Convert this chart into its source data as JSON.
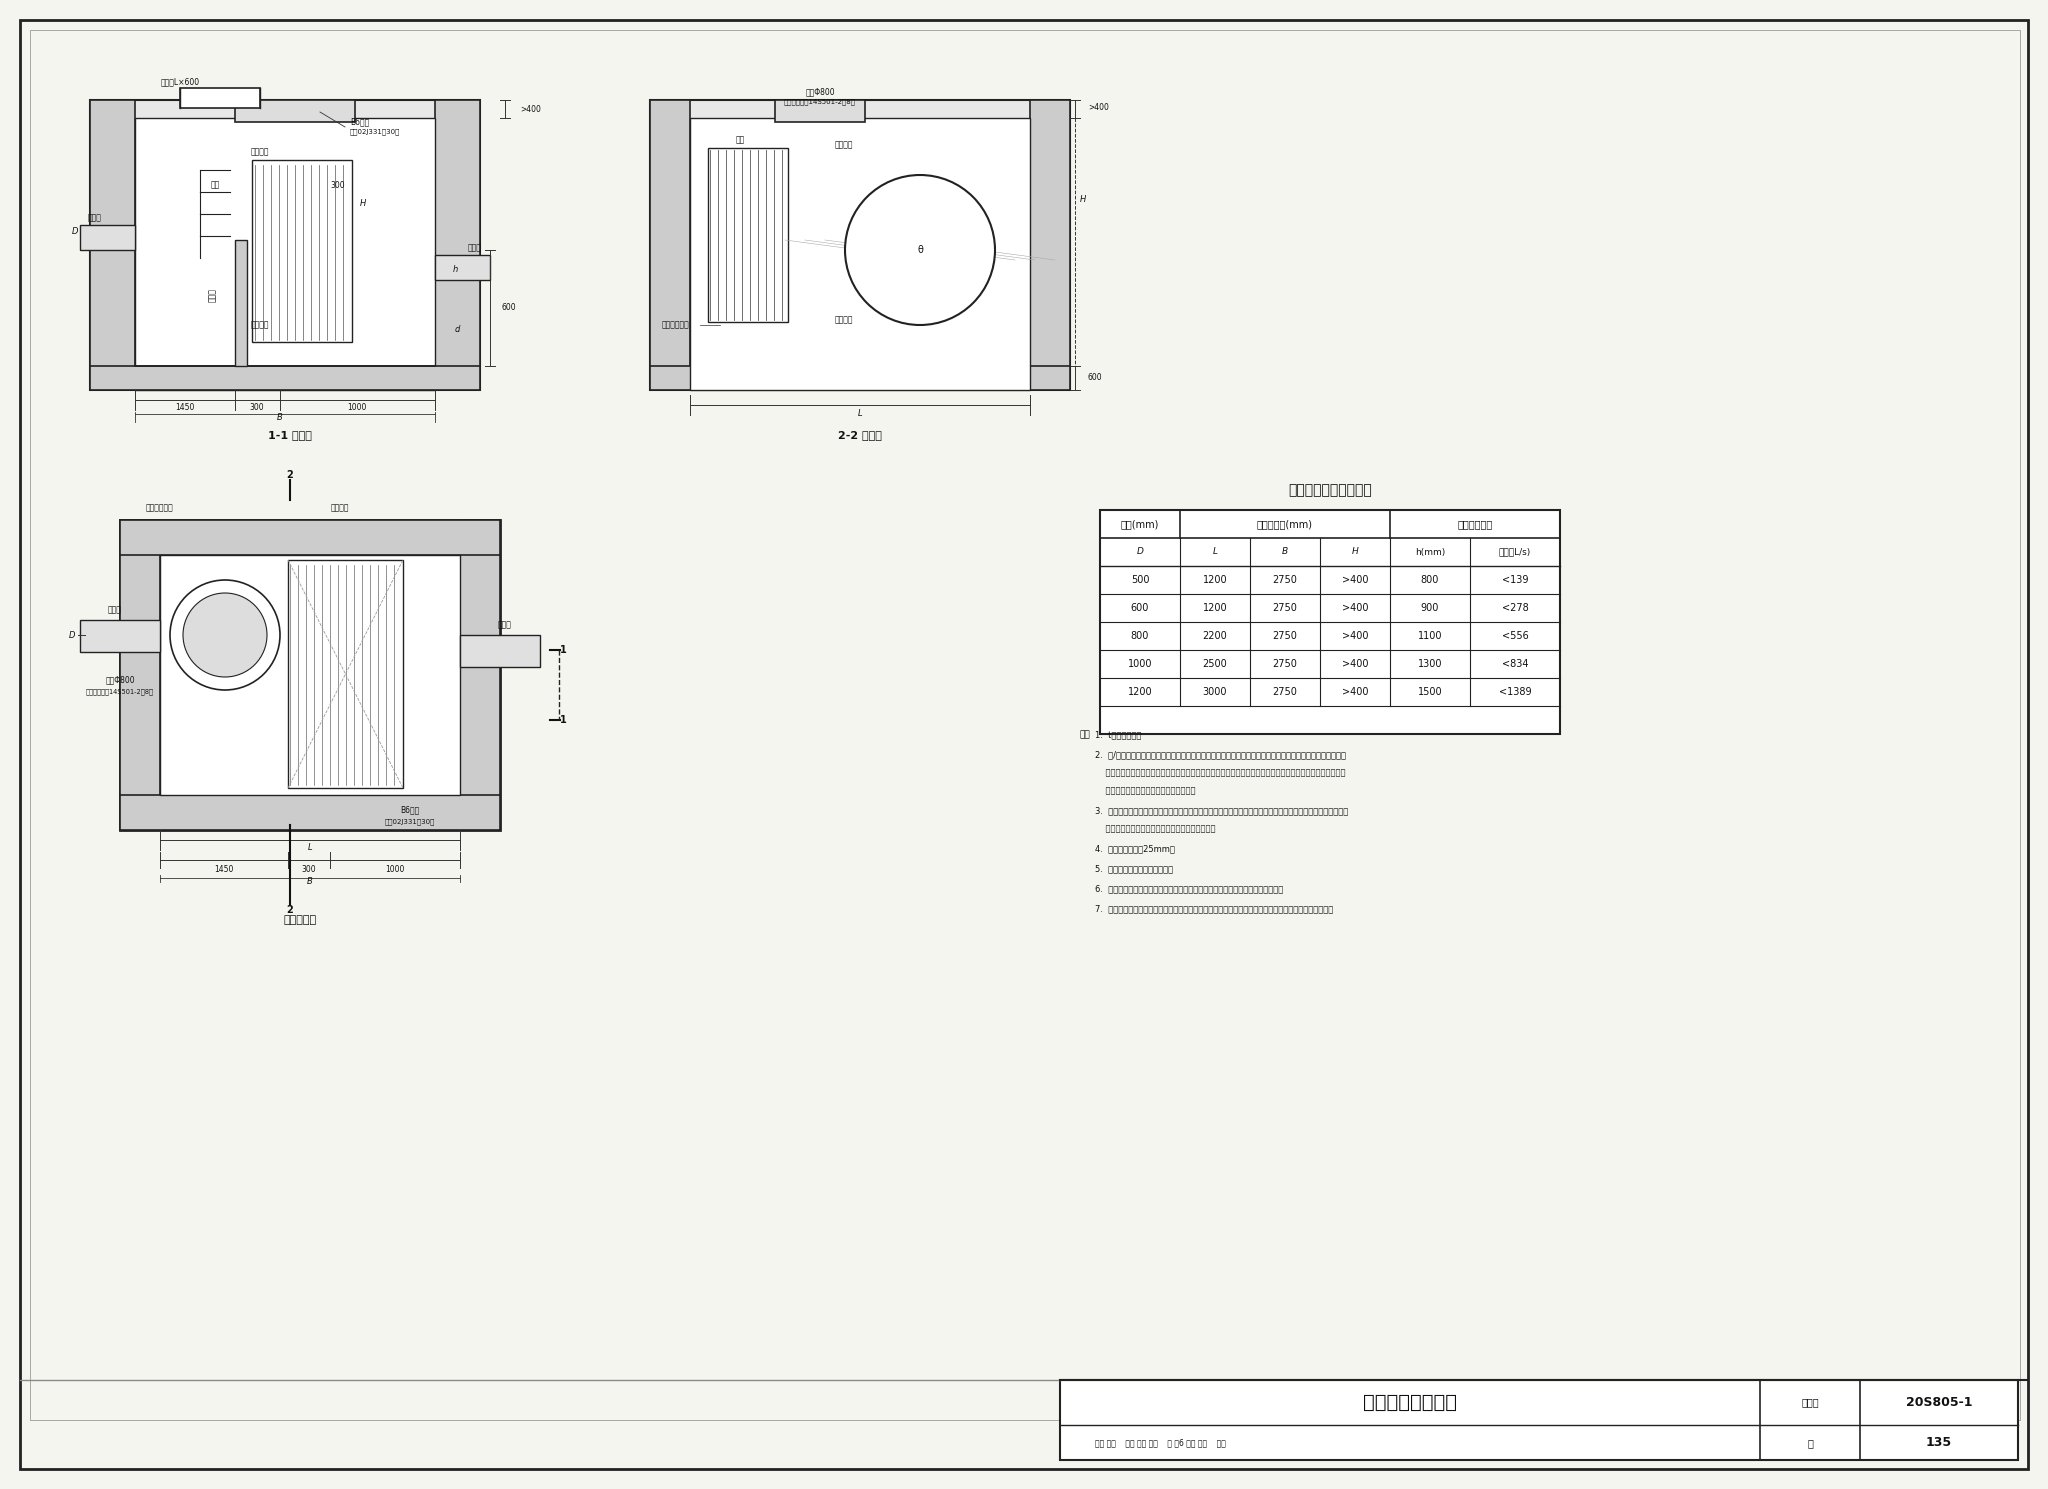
{
  "bg_color": "#f5f5f0",
  "border_color": "#222222",
  "title": "栅条格栅井布置图",
  "fig_number": "20S805-1",
  "page": "135",
  "table_title": "井室尺寸及设备参数表",
  "table_headers": [
    "管径(mm)",
    "各部分尺寸(mm)",
    "设备主要参数"
  ],
  "table_sub_headers": [
    "D",
    "L",
    "B",
    "H",
    "h(mm)",
    "流量（L/s)"
  ],
  "table_data": [
    [
      "500",
      "1200",
      "2750",
      ">400",
      "800",
      "<139"
    ],
    [
      "600",
      "1200",
      "2750",
      ">400",
      "900",
      "<278"
    ],
    [
      "800",
      "2200",
      "2750",
      ">400",
      "1100",
      "<556"
    ],
    [
      "1000",
      "2500",
      "2750",
      ">400",
      "1300",
      "<834"
    ],
    [
      "1200",
      "3000",
      "2750",
      ">400",
      "1500",
      "<1389"
    ]
  ],
  "notes_title": "注：",
  "notes": [
    "1.  t为管道壁厚。",
    "2.  弃/放空管根据工程实际需要设置，当需要将落入溢流堰之前的截留固体污染物质输送至污水处理厂时，可安装弃流管，当下游污水厂可接纳的流量受限时，弃流管需加装调流装置；为排除溢流堰之前的积水，可安装放空管，放空管就近设置检修闸门或闸槽。",
    "3.  因格栅井、进出水管径、埋深及所处位置的荷载情况等不确定因素太多，所以本图集仅给出工艺布置图，选用本图集时结构专业需结合实际情况进行深化设计。",
    "4.  栅条净间距采用25mm。",
    "5.  格栅安装采用化学螺栓固定。",
    "6.  溢流堰前的栅渣应定期进行人工清捞，清捞周期由设计人员根据实际情况确定。",
    "7.  当来水中经常夹带树枝等较大杂质或需要自动清渣时，格栅可选用回转式格栅，格栅井尺寸相应调整。"
  ],
  "section11_title": "1-1 剖面图",
  "section22_title": "2-2 剖面图",
  "plan_title": "井室平面图"
}
